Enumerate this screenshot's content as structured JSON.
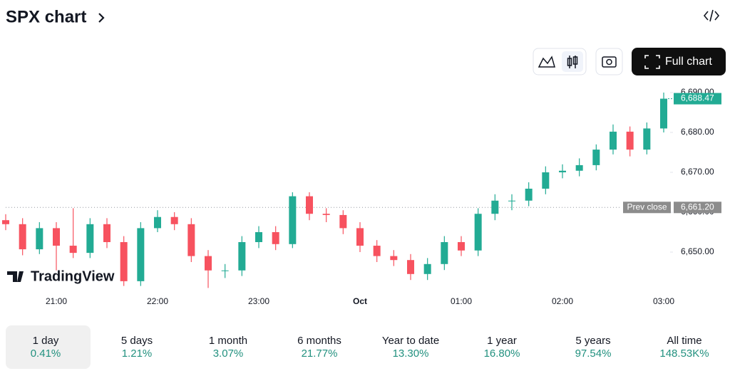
{
  "header": {
    "title": "SPX chart"
  },
  "toolbar": {
    "full_chart": "Full chart"
  },
  "chart_data": {
    "type": "candlestick",
    "categories": [
      null,
      null,
      null,
      "21:00",
      null,
      null,
      null,
      null,
      null,
      "22:00",
      null,
      null,
      null,
      null,
      null,
      "23:00",
      null,
      null,
      null,
      null,
      null,
      "Oct",
      null,
      null,
      null,
      null,
      null,
      "01:00",
      null,
      null,
      null,
      null,
      null,
      "02:00",
      null,
      null,
      null,
      null,
      null,
      "03:00"
    ],
    "open": [
      6658,
      6657,
      6650.7,
      6656,
      6651.6,
      6649.8,
      6657,
      6652.5,
      6642.7,
      6656,
      6658.8,
      6657,
      6649,
      6645.4,
      6645.4,
      6652.5,
      6655,
      6652,
      6664,
      6659.6,
      6659.3,
      6656,
      6651.6,
      6649,
      6648,
      6644.5,
      6647,
      6652.5,
      6650.4,
      6659.6,
      6662.9,
      6662.9,
      6665.9,
      6670,
      6670.4,
      6671.8,
      6675.7,
      6680.2,
      6675.7,
      6681
    ],
    "high": [
      6659.5,
      6658.5,
      6657.5,
      6657.5,
      6661,
      6658.5,
      6658.5,
      6654,
      6657.5,
      6660.5,
      6660,
      6658.5,
      6650.5,
      6647,
      6654,
      6656.5,
      6656.5,
      6665,
      6665,
      6661,
      6660.5,
      6657.5,
      6653,
      6650.5,
      6649.5,
      6648.5,
      6654,
      6654,
      6661,
      6664.5,
      6664.5,
      6667.5,
      6671.5,
      6672,
      6673.5,
      6677,
      6682,
      6681.5,
      6682.5,
      6690
    ],
    "low": [
      6655.5,
      6649.2,
      6649.5,
      6645.4,
      6648.5,
      6648.5,
      6651,
      6641.5,
      6641.5,
      6655,
      6655.5,
      6647.5,
      6641,
      6643.5,
      6644,
      6651,
      6650.5,
      6651,
      6658,
      6657.5,
      6654.5,
      6650,
      6647.5,
      6646.5,
      6643,
      6643,
      6645.5,
      6649,
      6649,
      6658,
      6660.5,
      6661.5,
      6664.5,
      6668.5,
      6669,
      6670.5,
      6674.5,
      6674,
      6674.5,
      6680
    ],
    "close": [
      6657,
      6650.7,
      6656,
      6651.6,
      6649.8,
      6657,
      6652.5,
      6642.7,
      6656,
      6658.8,
      6657,
      6649,
      6645.4,
      6645.4,
      6652.5,
      6655,
      6652,
      6664,
      6659.6,
      6659.3,
      6656,
      6651.6,
      6649,
      6648,
      6644.5,
      6647,
      6652.5,
      6650.4,
      6659.6,
      6662.9,
      6662.9,
      6665.9,
      6670,
      6670.4,
      6671.8,
      6675.7,
      6680.2,
      6675.7,
      6681,
      6688.47
    ],
    "up_color": "#22ab94",
    "down_color": "#f7525f",
    "ylim": [
      6640,
      6692
    ],
    "yticks": [
      {
        "value": 6650,
        "label": "6,650.00"
      },
      {
        "value": 6660,
        "label": "6,660.00"
      },
      {
        "value": 6670,
        "label": "6,670.00"
      },
      {
        "value": 6680,
        "label": "6,680.00"
      },
      {
        "value": 6690,
        "label": "6,690.00"
      }
    ],
    "last_price": {
      "value": 6688.47,
      "label": "6,688.47"
    },
    "prev_close": {
      "name": "Prev close",
      "value": 6661.2,
      "label": "6,661.20"
    },
    "watermark": "TradingView"
  },
  "periods": [
    {
      "label": "1 day",
      "change": "0.41%"
    },
    {
      "label": "5 days",
      "change": "1.21%"
    },
    {
      "label": "1 month",
      "change": "3.07%"
    },
    {
      "label": "6 months",
      "change": "21.77%"
    },
    {
      "label": "Year to date",
      "change": "13.30%"
    },
    {
      "label": "1 year",
      "change": "16.80%"
    },
    {
      "label": "5 years",
      "change": "97.54%"
    },
    {
      "label": "All time",
      "change": "148.53K%"
    }
  ]
}
